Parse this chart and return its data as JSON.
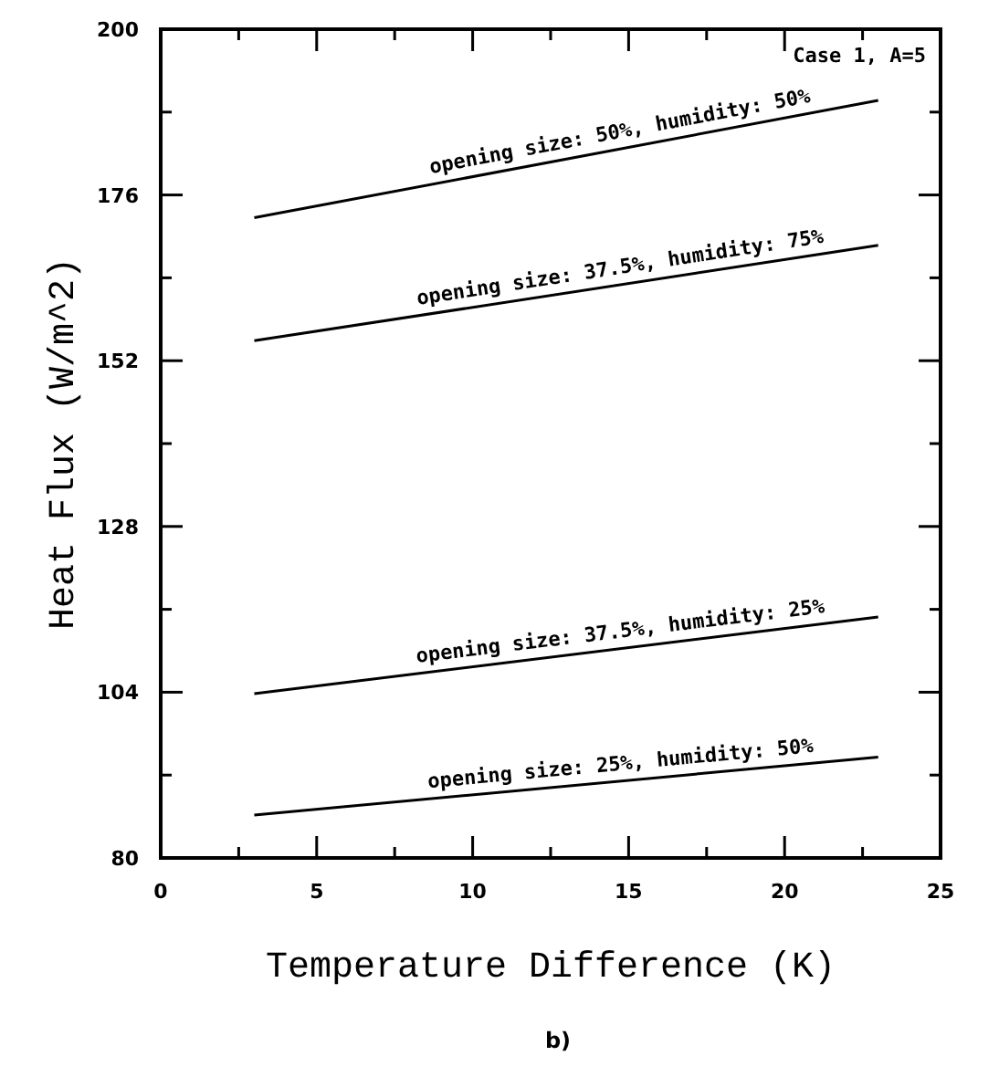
{
  "chart_data": {
    "type": "line",
    "xlabel": "Temperature Difference (K)",
    "ylabel": "Heat Flux (W/m^2)",
    "xlim": [
      0,
      25
    ],
    "ylim": [
      80,
      200
    ],
    "xticks": [
      0,
      {
        "value": 2.5,
        "label": null
      },
      5,
      {
        "value": 7.5,
        "label": null
      },
      10,
      {
        "value": 12.5,
        "label": null
      },
      15,
      {
        "value": 17.5,
        "label": null
      },
      20,
      {
        "value": 22.5,
        "label": null
      },
      25
    ],
    "yticks": [
      80,
      {
        "value": 92,
        "label": null
      },
      104,
      {
        "value": 116,
        "label": null
      },
      128,
      {
        "value": 140,
        "label": null
      },
      152,
      {
        "value": 164,
        "label": null
      },
      176,
      {
        "value": 188,
        "label": null
      },
      200
    ],
    "grid": false,
    "marker": "none",
    "line_style": "solid",
    "x": [
      3,
      23
    ],
    "series": [
      {
        "name": "opening size: 50%, humidity: 50%",
        "color": "#000000",
        "values": [
          172.7,
          189.7
        ]
      },
      {
        "name": "opening size: 37.5%, humidity: 75%",
        "color": "#000000",
        "values": [
          154.9,
          168.7
        ]
      },
      {
        "name": "opening size: 37.5%, humidity: 25%",
        "color": "#000000",
        "values": [
          103.8,
          114.9
        ]
      },
      {
        "name": "opening size: 25%, humidity: 50%",
        "color": "#000000",
        "values": [
          86.2,
          94.6
        ]
      }
    ],
    "annotations": [
      "Case 1, A=5",
      "b)"
    ]
  }
}
